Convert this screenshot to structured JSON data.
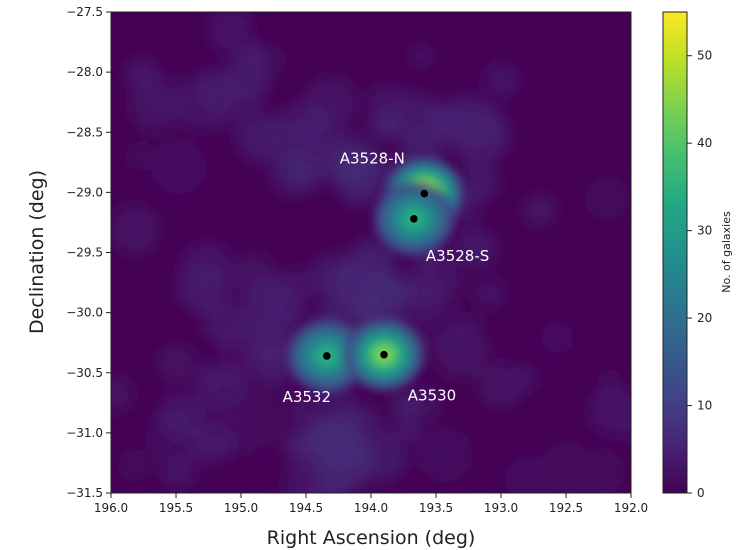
{
  "chart_data": {
    "type": "heatmap",
    "title": "",
    "xlabel": "Right Ascension (deg)",
    "ylabel": "Declination (deg)",
    "xlim": [
      196.0,
      192.0
    ],
    "ylim": [
      -31.5,
      -27.5
    ],
    "x_inverted": true,
    "x_ticks": [
      "196.0",
      "195.5",
      "195.0",
      "194.5",
      "194.0",
      "193.5",
      "193.0",
      "192.5",
      "192.0"
    ],
    "y_ticks": [
      "-31.5",
      "-31.0",
      "-30.5",
      "-30.0",
      "-29.5",
      "-29.0",
      "-28.5",
      "-28.0",
      "-27.5"
    ],
    "grid": false,
    "colorbar": {
      "label": "No. of galaxies",
      "range": [
        0,
        55
      ],
      "ticks": [
        "0",
        "10",
        "20",
        "30",
        "40",
        "50"
      ],
      "colormap": "viridis"
    },
    "clusters": [
      {
        "name": "A3528-N",
        "ra": 193.59,
        "dec": -29.01,
        "peak": 55
      },
      {
        "name": "A3528-S",
        "ra": 193.67,
        "dec": -29.22,
        "peak": 35
      },
      {
        "name": "A3532",
        "ra": 194.34,
        "dec": -30.36,
        "peak": 35
      },
      {
        "name": "A3530",
        "ra": 193.9,
        "dec": -30.35,
        "peak": 45
      }
    ]
  }
}
